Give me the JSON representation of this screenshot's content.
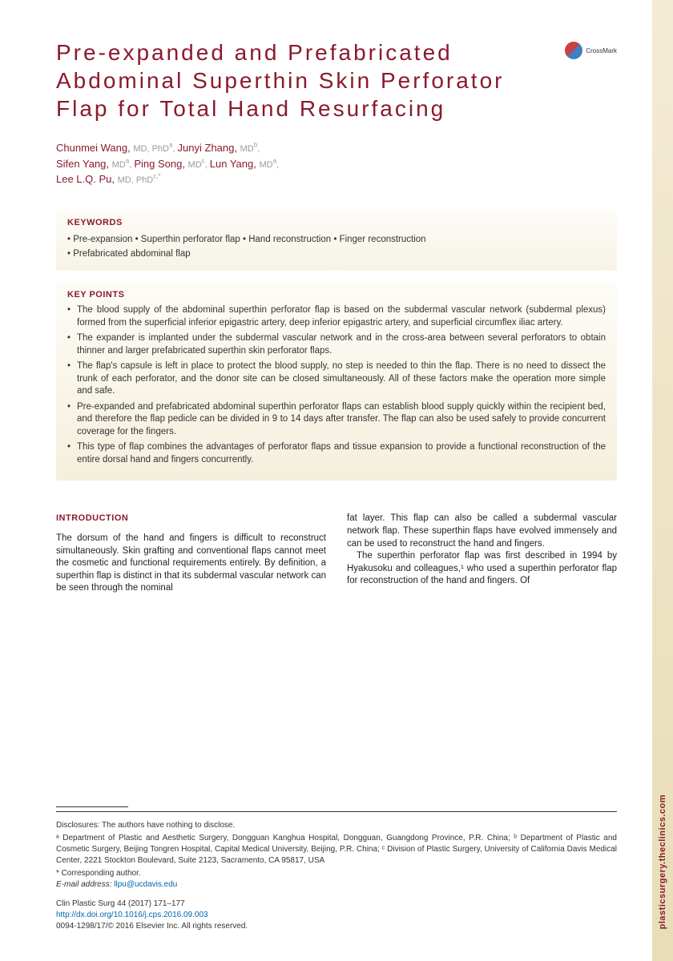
{
  "title": "Pre-expanded and Prefabricated Abdominal Superthin Skin Perforator Flap for Total Hand Resurfacing",
  "crossmark_label": "CrossMark",
  "authors_html": "Chunmei Wang, |MD, PhD|a|, Junyi Zhang, |MD|b|,\nSifen Yang, |MD|a|, Ping Song, |MD|c|, Lun Yang, |MD|a|,\nLee L.Q. Pu, |MD, PhD|c,*",
  "authors": [
    {
      "name": "Chunmei Wang",
      "creds": "MD, PhD",
      "affil": "a"
    },
    {
      "name": "Junyi Zhang",
      "creds": "MD",
      "affil": "b"
    },
    {
      "name": "Sifen Yang",
      "creds": "MD",
      "affil": "a"
    },
    {
      "name": "Ping Song",
      "creds": "MD",
      "affil": "c"
    },
    {
      "name": "Lun Yang",
      "creds": "MD",
      "affil": "a"
    },
    {
      "name": "Lee L.Q. Pu",
      "creds": "MD, PhD",
      "affil": "c,*"
    }
  ],
  "keywords_heading": "KEYWORDS",
  "keywords_line1": "• Pre-expansion • Superthin perforator flap • Hand reconstruction • Finger reconstruction",
  "keywords_line2": "• Prefabricated abdominal flap",
  "keypoints_heading": "KEY POINTS",
  "keypoints": [
    "The blood supply of the abdominal superthin perforator flap is based on the subdermal vascular network (subdermal plexus) formed from the superficial inferior epigastric artery, deep inferior epigastric artery, and superficial circumflex iliac artery.",
    "The expander is implanted under the subdermal vascular network and in the cross-area between several perforators to obtain thinner and larger prefabricated superthin skin perforator flaps.",
    "The flap's capsule is left in place to protect the blood supply, no step is needed to thin the flap. There is no need to dissect the trunk of each perforator, and the donor site can be closed simultaneously. All of these factors make the operation more simple and safe.",
    "Pre-expanded and prefabricated abdominal superthin perforator flaps can establish blood supply quickly within the recipient bed, and therefore the flap pedicle can be divided in 9 to 14 days after transfer. The flap can also be used safely to provide concurrent coverage for the fingers.",
    "This type of flap combines the advantages of perforator flaps and tissue expansion to provide a functional reconstruction of the entire dorsal hand and fingers concurrently."
  ],
  "intro_heading": "INTRODUCTION",
  "intro_col1": "The dorsum of the hand and fingers is difficult to reconstruct simultaneously. Skin grafting and conventional flaps cannot meet the cosmetic and functional requirements entirely. By definition, a superthin flap is distinct in that its subdermal vascular network can be seen through the nominal",
  "intro_col2_p1": "fat layer. This flap can also be called a subdermal vascular network flap. These superthin flaps have evolved immensely and can be used to reconstruct the hand and fingers.",
  "intro_col2_p2": "The superthin perforator flap was first described in 1994 by Hyakusoku and colleagues,¹ who used a superthin perforator flap for reconstruction of the hand and fingers. Of",
  "footer": {
    "disclosure": "Disclosures: The authors have nothing to disclose.",
    "affiliations": "ᵃ Department of Plastic and Aesthetic Surgery, Dongguan Kanghua Hospital, Dongguan, Guangdong Province, P.R. China; ᵇ Department of Plastic and Cosmetic Surgery, Beijing Tongren Hospital, Capital Medical University, Beijing, P.R. China; ᶜ Division of Plastic Surgery, University of California Davis Medical Center, 2221 Stockton Boulevard, Suite 2123, Sacramento, CA 95817, USA",
    "corresp": "* Corresponding author.",
    "email_label": "E-mail address:",
    "email": "llpu@ucdavis.edu",
    "citation": "Clin Plastic Surg 44 (2017) 171–177",
    "doi": "http://dx.doi.org/10.1016/j.cps.2016.09.003",
    "copyright": "0094-1298/17/© 2016 Elsevier Inc. All rights reserved."
  },
  "side_tab": "plasticsurgery.theclinics.com",
  "colors": {
    "maroon": "#8a1a2e",
    "cream_light": "#fdfcf7",
    "cream_dark": "#f5efdc",
    "link": "#0066aa",
    "tab_light": "#f3ebd4",
    "tab_dark": "#e8ddb8"
  }
}
